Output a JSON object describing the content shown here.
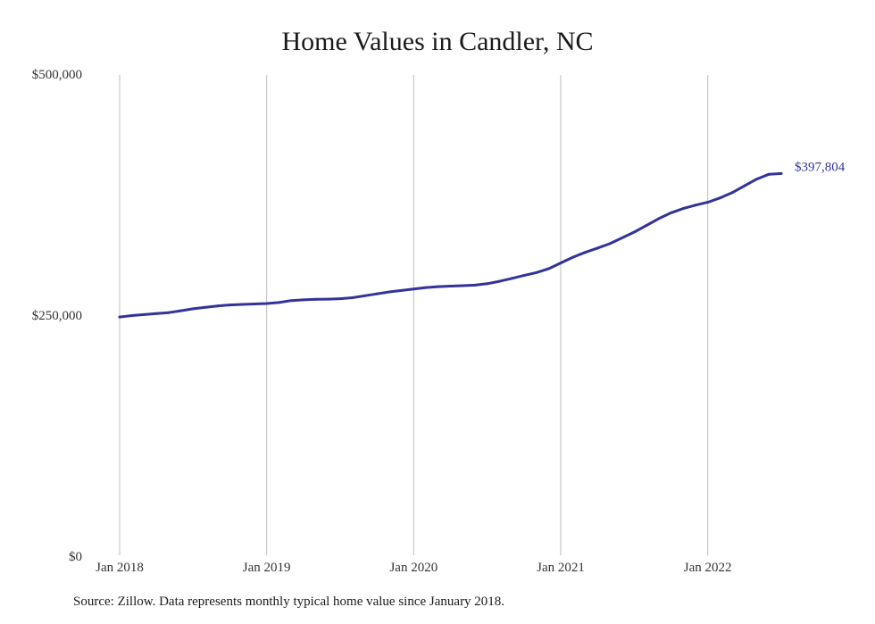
{
  "chart_data": {
    "type": "line",
    "title": "Home Values in Candler, NC",
    "xlabel": "",
    "ylabel": "",
    "x_ticks": [
      "Jan 2018",
      "Jan 2019",
      "Jan 2020",
      "Jan 2021",
      "Jan 2022"
    ],
    "y_ticks": [
      "$500,000",
      "$250,000",
      "$0"
    ],
    "ylim": [
      0,
      500000
    ],
    "xlim": [
      "2018-01",
      "2022-07"
    ],
    "grid": "vertical",
    "colors": {
      "line": "#33339a",
      "grid": "#bdbdbd"
    },
    "series": [
      {
        "end_label": "$397,804",
        "x": [
          "2018-01",
          "2018-02",
          "2018-03",
          "2018-04",
          "2018-05",
          "2018-06",
          "2018-07",
          "2018-08",
          "2018-09",
          "2018-10",
          "2018-11",
          "2018-12",
          "2019-01",
          "2019-02",
          "2019-03",
          "2019-04",
          "2019-05",
          "2019-06",
          "2019-07",
          "2019-08",
          "2019-09",
          "2019-10",
          "2019-11",
          "2019-12",
          "2020-01",
          "2020-02",
          "2020-03",
          "2020-04",
          "2020-05",
          "2020-06",
          "2020-07",
          "2020-08",
          "2020-09",
          "2020-10",
          "2020-11",
          "2020-12",
          "2021-01",
          "2021-02",
          "2021-03",
          "2021-04",
          "2021-05",
          "2021-06",
          "2021-07",
          "2021-08",
          "2021-09",
          "2021-10",
          "2021-11",
          "2021-12",
          "2022-01",
          "2022-02",
          "2022-03",
          "2022-04",
          "2022-05",
          "2022-06",
          "2022-07"
        ],
        "values": [
          249000,
          250500,
          251500,
          252500,
          253500,
          255500,
          257500,
          259000,
          260500,
          261500,
          262000,
          262500,
          263000,
          264000,
          266000,
          266800,
          267300,
          267500,
          268000,
          269000,
          271000,
          273000,
          275000,
          276500,
          278000,
          279500,
          280500,
          281000,
          281500,
          282000,
          283500,
          286000,
          289000,
          292000,
          295000,
          299000,
          305000,
          311000,
          316000,
          320500,
          325000,
          331000,
          337000,
          344000,
          351000,
          357000,
          361500,
          365000,
          368000,
          372500,
          378000,
          385000,
          392000,
          397000,
          397804
        ]
      }
    ],
    "annotations": [],
    "source_note": "Source: Zillow. Data represents monthly typical home value since January 2018."
  }
}
